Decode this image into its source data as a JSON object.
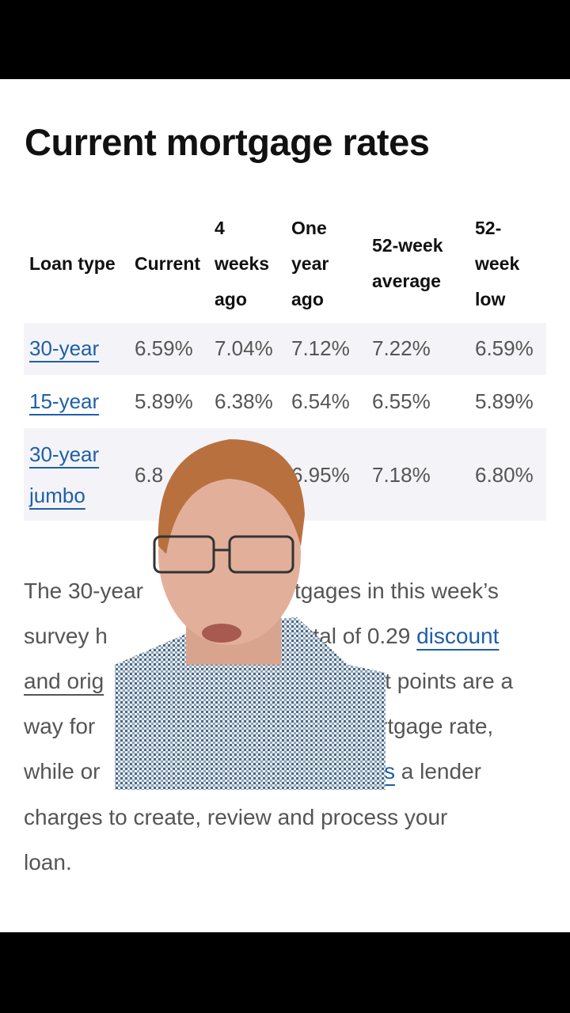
{
  "title": "Current mortgage rates",
  "table": {
    "headers": [
      [
        "Loan type"
      ],
      [
        "Current"
      ],
      [
        "4",
        "weeks",
        "ago"
      ],
      [
        "One",
        "year",
        "ago"
      ],
      [
        "52-week",
        "average"
      ],
      [
        "52-",
        "week",
        "low"
      ]
    ],
    "rows": [
      {
        "loan_type": [
          "30-year"
        ],
        "current": "6.59%",
        "four_weeks_ago": "7.04%",
        "one_year_ago": "7.12%",
        "avg_52_week": "7.22%",
        "low_52_week": "6.59%"
      },
      {
        "loan_type": [
          "15-year"
        ],
        "current": "5.89%",
        "four_weeks_ago": "6.38%",
        "one_year_ago": "6.54%",
        "avg_52_week": "6.55%",
        "low_52_week": "5.89%"
      },
      {
        "loan_type": [
          "30-year",
          "jumbo"
        ],
        "current": "6.8",
        "one_year_ago": "6.95%",
        "avg_52_week": "7.18%",
        "low_52_week": "6.80%"
      }
    ]
  },
  "paragraph": {
    "lines": [
      {
        "left": "The 30-year",
        "right": "tgages in this week’s"
      },
      {
        "left": "survey h",
        "right_text": "total of 0.29 ",
        "right_link": "discount"
      },
      {
        "left_link": "and orig",
        "right": "unt points are a"
      },
      {
        "left": "way for",
        "right": "rtgage rate,"
      },
      {
        "left": "while or",
        "right_link": "s",
        "right_text": " a lender"
      },
      {
        "full": "charges to create, review and process your"
      },
      {
        "full": "loan."
      }
    ]
  },
  "colors": {
    "link": "#1e5fa8",
    "row_highlight": "#f4f4f8",
    "text": "#555555"
  }
}
